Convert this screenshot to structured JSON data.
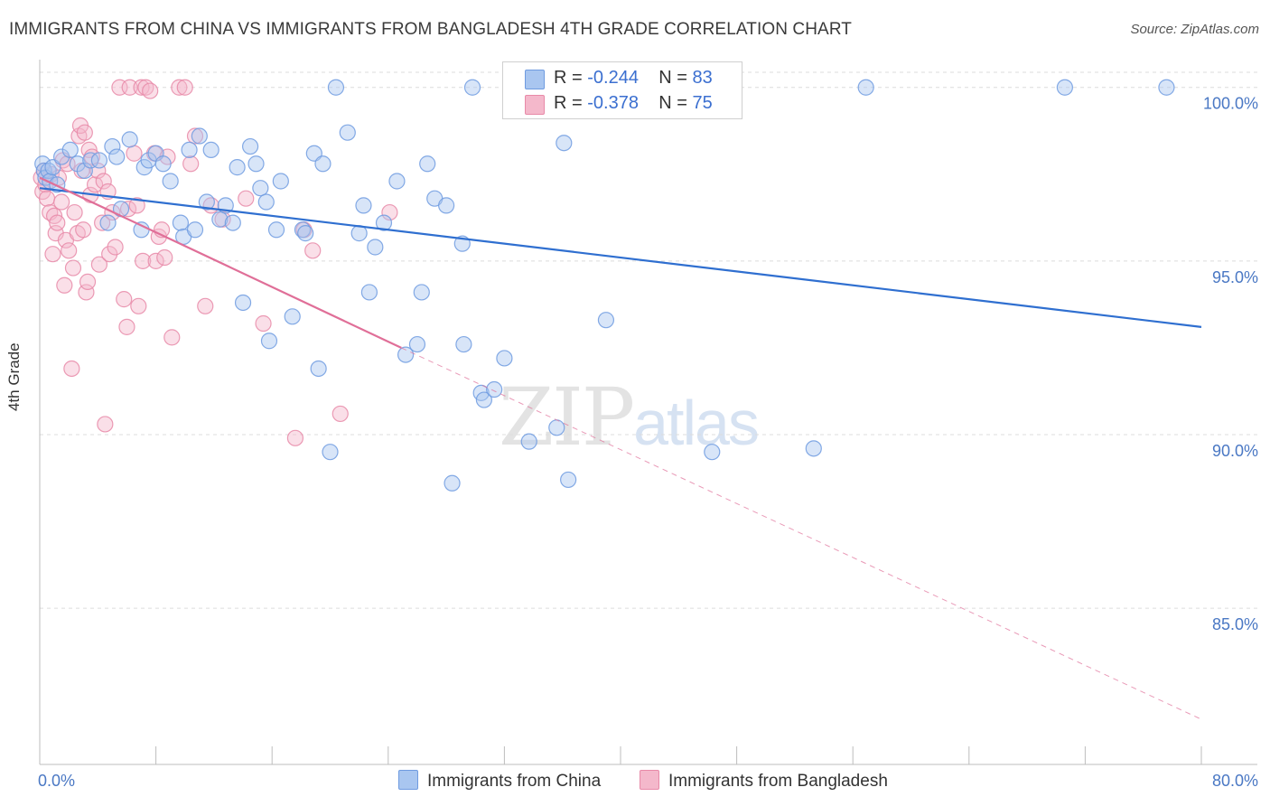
{
  "header": {
    "title": "IMMIGRANTS FROM CHINA VS IMMIGRANTS FROM BANGLADESH 4TH GRADE CORRELATION CHART",
    "source": "Source: ZipAtlas.com"
  },
  "watermark": {
    "zip": "ZIP",
    "atlas": "atlas"
  },
  "legend": {
    "rows": [
      {
        "r_label": "R = ",
        "r_value": "-0.244",
        "n_label": "N = ",
        "n_value": "83"
      },
      {
        "r_label": "R = ",
        "r_value": "-0.378",
        "n_label": "N = ",
        "n_value": "75"
      }
    ]
  },
  "bottom_legend": {
    "china": "Immigrants from China",
    "bangladesh": "Immigrants from Bangladesh"
  },
  "chart_data": {
    "type": "scatter",
    "title": "IMMIGRANTS FROM CHINA VS IMMIGRANTS FROM BANGLADESH 4TH GRADE CORRELATION CHART",
    "ylabel": "4th Grade",
    "xlabel": "",
    "xlim": [
      0,
      80
    ],
    "ylim": [
      80.5,
      100.8
    ],
    "x_tick_labels": [
      "0.0%",
      "80.0%"
    ],
    "y_ticks": [
      100,
      95,
      90,
      85
    ],
    "y_tick_labels": [
      "100.0%",
      "95.0%",
      "90.0%",
      "85.0%"
    ],
    "grid": true,
    "colors": {
      "china": "#6f9be0",
      "china_fill": "#a9c6f0",
      "china_line": "#2f6fd0",
      "bangladesh": "#e88aa8",
      "bangladesh_fill": "#f4b8cb",
      "bangladesh_line": "#e06f98"
    },
    "series": [
      {
        "name": "Immigrants from China",
        "trend": {
          "x": [
            0,
            80
          ],
          "y": [
            97.1,
            93.1
          ]
        },
        "points": [
          [
            0.2,
            97.8
          ],
          [
            0.3,
            97.6
          ],
          [
            0.4,
            97.4
          ],
          [
            0.6,
            97.6
          ],
          [
            0.7,
            97.3
          ],
          [
            0.9,
            97.7
          ],
          [
            1.2,
            97.2
          ],
          [
            1.5,
            98.0
          ],
          [
            2.1,
            98.2
          ],
          [
            2.6,
            97.8
          ],
          [
            3.1,
            97.6
          ],
          [
            3.5,
            97.9
          ],
          [
            4.1,
            97.9
          ],
          [
            5.0,
            98.3
          ],
          [
            5.3,
            98.0
          ],
          [
            5.6,
            96.5
          ],
          [
            6.2,
            98.5
          ],
          [
            4.7,
            96.1
          ],
          [
            7.0,
            95.9
          ],
          [
            7.2,
            97.7
          ],
          [
            7.5,
            97.9
          ],
          [
            8.0,
            98.1
          ],
          [
            8.5,
            97.8
          ],
          [
            9.0,
            97.3
          ],
          [
            9.7,
            96.1
          ],
          [
            9.9,
            95.7
          ],
          [
            10.3,
            98.2
          ],
          [
            10.7,
            95.9
          ],
          [
            11.0,
            98.6
          ],
          [
            11.5,
            96.7
          ],
          [
            11.8,
            98.2
          ],
          [
            12.4,
            96.2
          ],
          [
            12.8,
            96.6
          ],
          [
            13.3,
            96.1
          ],
          [
            13.6,
            97.7
          ],
          [
            14.0,
            93.8
          ],
          [
            14.5,
            98.3
          ],
          [
            14.9,
            97.8
          ],
          [
            15.2,
            97.1
          ],
          [
            15.6,
            96.7
          ],
          [
            15.8,
            92.7
          ],
          [
            16.3,
            95.9
          ],
          [
            16.6,
            97.3
          ],
          [
            17.4,
            93.4
          ],
          [
            18.1,
            95.9
          ],
          [
            18.3,
            95.8
          ],
          [
            18.9,
            98.1
          ],
          [
            19.2,
            91.9
          ],
          [
            19.5,
            97.8
          ],
          [
            20.0,
            89.5
          ],
          [
            20.4,
            100.0
          ],
          [
            21.2,
            98.7
          ],
          [
            22.0,
            95.8
          ],
          [
            22.3,
            96.6
          ],
          [
            22.7,
            94.1
          ],
          [
            23.1,
            95.4
          ],
          [
            23.7,
            96.1
          ],
          [
            24.6,
            97.3
          ],
          [
            25.2,
            92.3
          ],
          [
            26.0,
            92.6
          ],
          [
            26.3,
            94.1
          ],
          [
            26.7,
            97.8
          ],
          [
            27.2,
            96.8
          ],
          [
            28.0,
            96.6
          ],
          [
            28.4,
            88.6
          ],
          [
            29.1,
            95.5
          ],
          [
            29.2,
            92.6
          ],
          [
            29.8,
            100.0
          ],
          [
            30.4,
            91.2
          ],
          [
            30.6,
            91.0
          ],
          [
            31.3,
            91.3
          ],
          [
            32.0,
            92.2
          ],
          [
            33.2,
            100.0
          ],
          [
            33.7,
            89.8
          ],
          [
            35.6,
            90.2
          ],
          [
            36.1,
            98.4
          ],
          [
            36.4,
            88.7
          ],
          [
            39.0,
            93.3
          ],
          [
            46.3,
            89.5
          ],
          [
            53.3,
            89.6
          ],
          [
            56.9,
            100.0
          ],
          [
            70.6,
            100.0
          ],
          [
            77.6,
            100.0
          ]
        ]
      },
      {
        "name": "Immigrants from Bangladesh",
        "trend": {
          "x": [
            0,
            24.9
          ],
          "y": [
            97.4,
            92.5
          ]
        },
        "trend_dashed": {
          "x": [
            24.9,
            80
          ],
          "y": [
            92.5,
            81.8
          ]
        },
        "points": [
          [
            0.1,
            97.4
          ],
          [
            0.2,
            97.0
          ],
          [
            0.3,
            97.6
          ],
          [
            0.4,
            97.2
          ],
          [
            0.5,
            96.8
          ],
          [
            0.7,
            96.4
          ],
          [
            0.8,
            97.5
          ],
          [
            0.9,
            95.2
          ],
          [
            1.0,
            96.3
          ],
          [
            1.1,
            95.8
          ],
          [
            1.2,
            96.1
          ],
          [
            1.3,
            97.4
          ],
          [
            1.5,
            96.7
          ],
          [
            1.6,
            97.9
          ],
          [
            1.7,
            94.3
          ],
          [
            1.8,
            95.6
          ],
          [
            1.9,
            97.8
          ],
          [
            2.0,
            95.3
          ],
          [
            2.2,
            91.9
          ],
          [
            2.3,
            94.8
          ],
          [
            2.4,
            96.4
          ],
          [
            2.6,
            95.8
          ],
          [
            2.7,
            98.6
          ],
          [
            2.8,
            98.9
          ],
          [
            2.9,
            97.6
          ],
          [
            3.0,
            95.9
          ],
          [
            3.1,
            98.7
          ],
          [
            3.2,
            94.1
          ],
          [
            3.3,
            94.4
          ],
          [
            3.4,
            98.2
          ],
          [
            3.5,
            96.9
          ],
          [
            3.6,
            98.0
          ],
          [
            3.8,
            97.2
          ],
          [
            4.0,
            97.6
          ],
          [
            4.1,
            94.9
          ],
          [
            4.3,
            96.1
          ],
          [
            4.4,
            97.3
          ],
          [
            4.5,
            90.3
          ],
          [
            4.7,
            97.0
          ],
          [
            4.8,
            95.2
          ],
          [
            5.0,
            96.4
          ],
          [
            5.2,
            95.4
          ],
          [
            5.5,
            100.0
          ],
          [
            5.8,
            93.9
          ],
          [
            6.0,
            93.1
          ],
          [
            6.1,
            96.5
          ],
          [
            6.2,
            100.0
          ],
          [
            6.5,
            98.1
          ],
          [
            6.7,
            96.6
          ],
          [
            6.8,
            93.7
          ],
          [
            7.0,
            100.0
          ],
          [
            7.1,
            95.0
          ],
          [
            7.3,
            100.0
          ],
          [
            7.6,
            99.9
          ],
          [
            7.9,
            98.1
          ],
          [
            8.0,
            95.0
          ],
          [
            8.2,
            95.7
          ],
          [
            8.4,
            95.9
          ],
          [
            8.6,
            95.1
          ],
          [
            8.8,
            98.0
          ],
          [
            9.1,
            92.8
          ],
          [
            9.6,
            100.0
          ],
          [
            10.0,
            100.0
          ],
          [
            10.4,
            97.8
          ],
          [
            10.7,
            98.6
          ],
          [
            11.4,
            93.7
          ],
          [
            11.8,
            96.6
          ],
          [
            12.6,
            96.2
          ],
          [
            14.2,
            96.8
          ],
          [
            15.4,
            93.2
          ],
          [
            17.6,
            89.9
          ],
          [
            18.2,
            95.9
          ],
          [
            18.8,
            95.3
          ],
          [
            20.7,
            90.6
          ],
          [
            24.1,
            96.4
          ]
        ]
      }
    ]
  }
}
